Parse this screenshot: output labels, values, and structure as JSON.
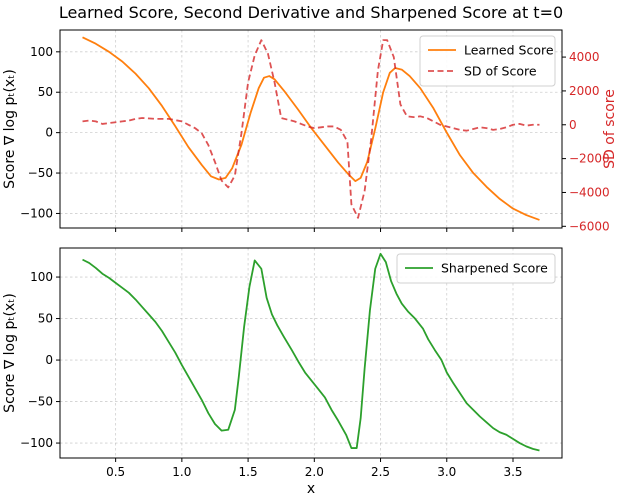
{
  "chart_data": [
    {
      "type": "line",
      "title": "Learned Score, Second Derivative and Sharpened Score at t=0",
      "ylabel": "Score ∇ log pₜ(xₜ)",
      "y2label": "SD of score",
      "xlim": [
        0.08,
        3.87
      ],
      "ylim": [
        -118,
        127
      ],
      "y2lim": [
        -6100,
        5600
      ],
      "xticks": [
        "0.5",
        "1.0",
        "1.5",
        "2.0",
        "2.5",
        "3.0",
        "3.5"
      ],
      "yticks": [
        "100",
        "50",
        "0",
        "−50",
        "−100"
      ],
      "y2ticks": [
        "4000",
        "2000",
        "0",
        "−2000",
        "−4000",
        "−6000"
      ],
      "grid": true,
      "legend_position": "upper-right",
      "colors": {
        "learned": "#ff7f0e",
        "sd": "#d62728",
        "y2axis": "#d62728"
      },
      "series": [
        {
          "name": "Learned Score",
          "axis": "left",
          "style": "solid",
          "x": [
            0.25,
            0.35,
            0.45,
            0.55,
            0.65,
            0.75,
            0.85,
            0.95,
            1.05,
            1.15,
            1.22,
            1.28,
            1.33,
            1.38,
            1.45,
            1.52,
            1.58,
            1.62,
            1.66,
            1.7,
            1.78,
            1.88,
            1.98,
            2.08,
            2.18,
            2.26,
            2.31,
            2.35,
            2.4,
            2.46,
            2.52,
            2.57,
            2.61,
            2.66,
            2.72,
            2.8,
            2.9,
            3.0,
            3.1,
            3.2,
            3.3,
            3.4,
            3.5,
            3.6,
            3.7
          ],
          "y": [
            118,
            110,
            100,
            88,
            73,
            55,
            33,
            8,
            -18,
            -40,
            -54,
            -58,
            -56,
            -44,
            -15,
            25,
            55,
            68,
            70,
            66,
            50,
            28,
            5,
            -16,
            -37,
            -52,
            -60,
            -56,
            -36,
            5,
            50,
            74,
            80,
            78,
            70,
            55,
            30,
            0,
            -28,
            -50,
            -67,
            -82,
            -94,
            -102,
            -108
          ]
        },
        {
          "name": "SD of Score",
          "axis": "right",
          "style": "dashed",
          "x": [
            0.25,
            0.3,
            0.35,
            0.4,
            0.45,
            0.5,
            0.55,
            0.6,
            0.65,
            0.7,
            0.8,
            0.9,
            1.0,
            1.05,
            1.1,
            1.15,
            1.2,
            1.25,
            1.3,
            1.35,
            1.4,
            1.45,
            1.5,
            1.55,
            1.6,
            1.65,
            1.7,
            1.75,
            1.8,
            1.85,
            1.9,
            1.95,
            2.0,
            2.05,
            2.1,
            2.15,
            2.2,
            2.25,
            2.28,
            2.33,
            2.38,
            2.43,
            2.48,
            2.52,
            2.55,
            2.6,
            2.65,
            2.7,
            2.75,
            2.8,
            2.85,
            2.9,
            2.95,
            3.0,
            3.05,
            3.1,
            3.15,
            3.2,
            3.25,
            3.3,
            3.35,
            3.4,
            3.45,
            3.5,
            3.55,
            3.6,
            3.65,
            3.7
          ],
          "y": [
            200,
            250,
            200,
            50,
            100,
            150,
            200,
            250,
            350,
            400,
            350,
            350,
            200,
            0,
            -200,
            -500,
            -1200,
            -2200,
            -3300,
            -3700,
            -3000,
            -500,
            2500,
            4100,
            5000,
            4200,
            2500,
            400,
            300,
            200,
            50,
            -100,
            -200,
            -150,
            -100,
            -100,
            -300,
            -1000,
            -4700,
            -5500,
            -3900,
            -800,
            3200,
            5000,
            5000,
            4000,
            1200,
            500,
            450,
            500,
            400,
            200,
            0,
            -100,
            -200,
            -300,
            -350,
            -250,
            -150,
            -200,
            -300,
            -250,
            -150,
            0,
            50,
            -50,
            0,
            0
          ]
        }
      ]
    },
    {
      "type": "line",
      "title": "",
      "xlabel": "x",
      "ylabel": "Score ∇ log pₜ(xₜ)",
      "xlim": [
        0.08,
        3.87
      ],
      "ylim": [
        -118,
        135
      ],
      "xticks": [
        "0.5",
        "1.0",
        "1.5",
        "2.0",
        "2.5",
        "3.0",
        "3.5"
      ],
      "yticks": [
        "100",
        "50",
        "0",
        "−50",
        "−100"
      ],
      "grid": true,
      "legend_position": "upper-right",
      "colors": {
        "sharpened": "#2ca02c"
      },
      "series": [
        {
          "name": "Sharpened Score",
          "axis": "left",
          "style": "solid",
          "x": [
            0.25,
            0.3,
            0.35,
            0.4,
            0.45,
            0.5,
            0.55,
            0.6,
            0.65,
            0.7,
            0.75,
            0.8,
            0.85,
            0.9,
            0.95,
            1.0,
            1.05,
            1.1,
            1.15,
            1.2,
            1.25,
            1.3,
            1.35,
            1.4,
            1.43,
            1.47,
            1.51,
            1.55,
            1.6,
            1.64,
            1.68,
            1.72,
            1.77,
            1.83,
            1.88,
            1.93,
            1.98,
            2.03,
            2.08,
            2.13,
            2.18,
            2.24,
            2.28,
            2.32,
            2.35,
            2.38,
            2.42,
            2.46,
            2.5,
            2.54,
            2.58,
            2.62,
            2.66,
            2.71,
            2.76,
            2.82,
            2.86,
            2.91,
            2.96,
            3.0,
            3.05,
            3.1,
            3.15,
            3.2,
            3.25,
            3.3,
            3.35,
            3.4,
            3.45,
            3.5,
            3.55,
            3.6,
            3.65,
            3.7
          ],
          "y": [
            121,
            117,
            111,
            104,
            99,
            93,
            87,
            81,
            73,
            64,
            55,
            46,
            35,
            22,
            9,
            -6,
            -20,
            -34,
            -48,
            -64,
            -77,
            -85,
            -84,
            -60,
            -20,
            40,
            88,
            120,
            110,
            75,
            55,
            42,
            28,
            12,
            -2,
            -15,
            -25,
            -35,
            -45,
            -60,
            -73,
            -90,
            -106,
            -106,
            -70,
            -10,
            60,
            110,
            128,
            118,
            95,
            80,
            68,
            58,
            50,
            38,
            25,
            12,
            0,
            -15,
            -28,
            -40,
            -52,
            -60,
            -68,
            -75,
            -82,
            -87,
            -90,
            -95,
            -100,
            -104,
            -107,
            -109
          ]
        }
      ]
    }
  ]
}
